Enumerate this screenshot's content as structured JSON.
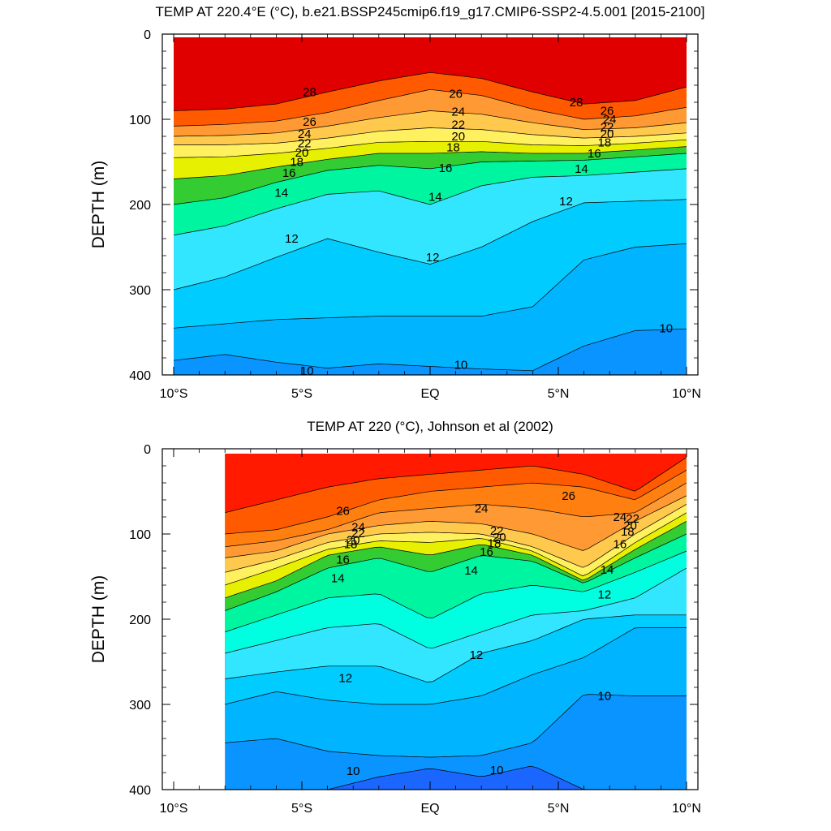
{
  "chart_data": [
    {
      "type": "filled-contour",
      "title": "TEMP AT 220.4°E (°C), b.e21.BSSP245cmip6.f19_g17.CMIP6-SSP2-4.5.001 [2015-2100]",
      "xlabel": "",
      "ylabel": "DEPTH (m)",
      "xlim": [
        -10,
        10
      ],
      "ylim": [
        400,
        0
      ],
      "x_ticks": [
        -10,
        -5,
        0,
        5,
        10
      ],
      "x_tick_labels": [
        "10°S",
        "5°S",
        "EQ",
        "5°N",
        "10°N"
      ],
      "y_ticks": [
        0,
        100,
        200,
        300,
        400
      ],
      "y_tick_labels": [
        "0",
        "100",
        "200",
        "300",
        "400"
      ],
      "contour_interval_C": 1,
      "isotherms": [
        {
          "temp": 28,
          "lat": [
            -10,
            -8,
            -6,
            -4,
            -2,
            0,
            2,
            4,
            6,
            8,
            10
          ],
          "depth": [
            90,
            88,
            82,
            68,
            55,
            45,
            52,
            68,
            82,
            78,
            62
          ]
        },
        {
          "temp": 26,
          "lat": [
            -10,
            -8,
            -6,
            -4,
            -2,
            0,
            2,
            4,
            6,
            8,
            10
          ],
          "depth": [
            108,
            106,
            102,
            92,
            78,
            65,
            72,
            88,
            100,
            96,
            86
          ]
        },
        {
          "temp": 24,
          "lat": [
            -10,
            -8,
            -6,
            -4,
            -2,
            0,
            2,
            4,
            6,
            8,
            10
          ],
          "depth": [
            120,
            119,
            116,
            108,
            98,
            90,
            94,
            104,
            112,
            110,
            104
          ]
        },
        {
          "temp": 22,
          "lat": [
            -10,
            -8,
            -6,
            -4,
            -2,
            0,
            2,
            4,
            6,
            8,
            10
          ],
          "depth": [
            130,
            130,
            128,
            122,
            114,
            110,
            112,
            118,
            122,
            120,
            116
          ]
        },
        {
          "temp": 20,
          "lat": [
            -10,
            -8,
            -6,
            -4,
            -2,
            0,
            2,
            4,
            6,
            8,
            10
          ],
          "depth": [
            145,
            144,
            140,
            134,
            127,
            126,
            126,
            130,
            131,
            128,
            124
          ]
        },
        {
          "temp": 18,
          "lat": [
            -10,
            -8,
            -6,
            -4,
            -2,
            0,
            2,
            4,
            6,
            8,
            10
          ],
          "depth": [
            170,
            166,
            156,
            147,
            140,
            140,
            138,
            140,
            140,
            136,
            132
          ]
        },
        {
          "temp": 16,
          "lat": [
            -10,
            -8,
            -6,
            -4,
            -2,
            0,
            2,
            4,
            6,
            8,
            10
          ],
          "depth": [
            200,
            192,
            174,
            160,
            154,
            158,
            150,
            149,
            148,
            144,
            140
          ]
        },
        {
          "temp": 14,
          "lat": [
            -10,
            -8,
            -6,
            -4,
            -2,
            0,
            2,
            4,
            6,
            8,
            10
          ],
          "depth": [
            236,
            225,
            205,
            188,
            184,
            200,
            178,
            168,
            166,
            162,
            158
          ]
        },
        {
          "temp": 12,
          "lat": [
            -10,
            -8,
            -6,
            -4,
            -2,
            0,
            2,
            4,
            6,
            8,
            10
          ],
          "depth": [
            300,
            285,
            262,
            240,
            256,
            270,
            250,
            220,
            198,
            196,
            194
          ]
        },
        {
          "temp": 11,
          "lat": [
            -10,
            -8,
            -6,
            -4,
            -2,
            0,
            2,
            4,
            6,
            8,
            10
          ],
          "depth": [
            345,
            340,
            335,
            333,
            331,
            331,
            331,
            320,
            265,
            250,
            246
          ]
        },
        {
          "temp": 10,
          "lat": [
            -10,
            -8,
            -6,
            -4,
            -2,
            0,
            2,
            4,
            6,
            8,
            10
          ],
          "depth": [
            383,
            376,
            385,
            392,
            387,
            390,
            393,
            395,
            366,
            348,
            346
          ]
        }
      ],
      "contour_labels": [
        {
          "text": "28",
          "lat": -4.7,
          "depth": 68
        },
        {
          "text": "28",
          "lat": 5.7,
          "depth": 80
        },
        {
          "text": "26",
          "lat": -4.7,
          "depth": 103
        },
        {
          "text": "26",
          "lat": 1.0,
          "depth": 70
        },
        {
          "text": "26",
          "lat": 6.9,
          "depth": 90
        },
        {
          "text": "24",
          "lat": -4.9,
          "depth": 117
        },
        {
          "text": "24",
          "lat": 1.1,
          "depth": 91
        },
        {
          "text": "24",
          "lat": 7.0,
          "depth": 100
        },
        {
          "text": "22",
          "lat": -4.9,
          "depth": 128
        },
        {
          "text": "22",
          "lat": 1.1,
          "depth": 106
        },
        {
          "text": "22",
          "lat": 6.9,
          "depth": 109
        },
        {
          "text": "20",
          "lat": -5.0,
          "depth": 139
        },
        {
          "text": "20",
          "lat": 1.1,
          "depth": 120
        },
        {
          "text": "20",
          "lat": 6.9,
          "depth": 117
        },
        {
          "text": "18",
          "lat": -5.2,
          "depth": 150
        },
        {
          "text": "18",
          "lat": 0.9,
          "depth": 133
        },
        {
          "text": "18",
          "lat": 6.8,
          "depth": 127
        },
        {
          "text": "16",
          "lat": -5.5,
          "depth": 163
        },
        {
          "text": "16",
          "lat": 0.6,
          "depth": 157
        },
        {
          "text": "16",
          "lat": 6.4,
          "depth": 140
        },
        {
          "text": "14",
          "lat": -5.8,
          "depth": 186
        },
        {
          "text": "14",
          "lat": 0.2,
          "depth": 191
        },
        {
          "text": "14",
          "lat": 5.9,
          "depth": 158
        },
        {
          "text": "12",
          "lat": -5.4,
          "depth": 240
        },
        {
          "text": "12",
          "lat": 0.1,
          "depth": 262
        },
        {
          "text": "12",
          "lat": 5.3,
          "depth": 196
        },
        {
          "text": "10",
          "lat": -4.8,
          "depth": 395
        },
        {
          "text": "10",
          "lat": 1.2,
          "depth": 388
        },
        {
          "text": "10",
          "lat": 9.2,
          "depth": 345
        }
      ]
    },
    {
      "type": "filled-contour",
      "title": "TEMP AT 220 (°C), Johnson et al (2002)",
      "xlabel": "",
      "ylabel": "DEPTH (m)",
      "xlim": [
        -10,
        10
      ],
      "ylim": [
        400,
        0
      ],
      "data_lat_range": [
        -8,
        10
      ],
      "x_ticks": [
        -10,
        -5,
        0,
        5,
        10
      ],
      "x_tick_labels": [
        "10°S",
        "5°S",
        "EQ",
        "5°N",
        "10°N"
      ],
      "y_ticks": [
        0,
        100,
        200,
        300,
        400
      ],
      "y_tick_labels": [
        "0",
        "100",
        "200",
        "300",
        "400"
      ],
      "contour_interval_C": 1,
      "isotherms": [
        {
          "temp": 27,
          "lat": [
            -8,
            -6,
            -4,
            -2,
            0,
            2,
            4,
            6,
            8,
            10
          ],
          "depth": [
            75,
            60,
            45,
            35,
            30,
            25,
            20,
            30,
            50,
            10
          ]
        },
        {
          "temp": 26,
          "lat": [
            -8,
            -6,
            -4,
            -2,
            0,
            2,
            4,
            6,
            8,
            10
          ],
          "depth": [
            100,
            95,
            80,
            60,
            50,
            45,
            40,
            45,
            60,
            25
          ]
        },
        {
          "temp": 25,
          "lat": [
            -8,
            -6,
            -4,
            -2,
            0,
            2,
            4,
            6,
            8,
            10
          ],
          "depth": [
            115,
            108,
            95,
            75,
            70,
            65,
            70,
            80,
            75,
            40
          ]
        },
        {
          "temp": 24,
          "lat": [
            -8,
            -6,
            -4,
            -2,
            0,
            2,
            4,
            6,
            8,
            10
          ],
          "depth": [
            128,
            120,
            100,
            90,
            85,
            88,
            100,
            120,
            85,
            55
          ]
        },
        {
          "temp": 22,
          "lat": [
            -8,
            -6,
            -4,
            -2,
            0,
            2,
            4,
            6,
            8,
            10
          ],
          "depth": [
            145,
            130,
            110,
            100,
            98,
            100,
            115,
            140,
            100,
            65
          ]
        },
        {
          "temp": 20,
          "lat": [
            -8,
            -6,
            -4,
            -2,
            0,
            2,
            4,
            6,
            8,
            10
          ],
          "depth": [
            160,
            140,
            118,
            108,
            110,
            105,
            120,
            150,
            110,
            75
          ]
        },
        {
          "temp": 18,
          "lat": [
            -8,
            -6,
            -4,
            -2,
            0,
            2,
            4,
            6,
            8,
            10
          ],
          "depth": [
            175,
            155,
            125,
            115,
            125,
            112,
            125,
            155,
            118,
            85
          ]
        },
        {
          "temp": 16,
          "lat": [
            -8,
            -6,
            -4,
            -2,
            0,
            2,
            4,
            6,
            8,
            10
          ],
          "depth": [
            190,
            168,
            140,
            128,
            145,
            125,
            132,
            158,
            128,
            100
          ]
        },
        {
          "temp": 14,
          "lat": [
            -8,
            -6,
            -4,
            -2,
            0,
            2,
            4,
            6,
            8,
            10
          ],
          "depth": [
            215,
            195,
            175,
            170,
            200,
            170,
            160,
            168,
            145,
            120
          ]
        },
        {
          "temp": 13,
          "lat": [
            -8,
            -6,
            -4,
            -2,
            0,
            2,
            4,
            6,
            8,
            10
          ],
          "depth": [
            240,
            225,
            210,
            205,
            235,
            215,
            195,
            190,
            175,
            140
          ]
        },
        {
          "temp": 12,
          "lat": [
            -8,
            -6,
            -4,
            -2,
            0,
            2,
            4,
            6,
            8,
            10
          ],
          "depth": [
            270,
            262,
            255,
            255,
            275,
            240,
            225,
            200,
            195,
            195
          ]
        },
        {
          "temp": 11,
          "lat": [
            -8,
            -6,
            -4,
            -2,
            0,
            2,
            4,
            6,
            8,
            10
          ],
          "depth": [
            300,
            285,
            295,
            300,
            300,
            290,
            265,
            245,
            210,
            210
          ]
        },
        {
          "temp": 10,
          "lat": [
            -8,
            -6,
            -4,
            -2,
            0,
            2,
            4,
            6,
            8,
            10
          ],
          "depth": [
            345,
            340,
            355,
            360,
            362,
            360,
            345,
            288,
            290,
            290
          ]
        },
        {
          "temp": 9,
          "lat": [
            -8,
            -6,
            -4,
            -2,
            0,
            2,
            4,
            6,
            8,
            10
          ],
          "depth": [
            400,
            400,
            400,
            385,
            375,
            385,
            372,
            400,
            400,
            400
          ]
        }
      ],
      "contour_labels": [
        {
          "text": "26",
          "lat": -3.4,
          "depth": 73
        },
        {
          "text": "26",
          "lat": 5.4,
          "depth": 55
        },
        {
          "text": "24",
          "lat": -2.8,
          "depth": 92
        },
        {
          "text": "24",
          "lat": 2.0,
          "depth": 70
        },
        {
          "text": "24",
          "lat": 7.4,
          "depth": 80
        },
        {
          "text": "22",
          "lat": -2.8,
          "depth": 99
        },
        {
          "text": "22",
          "lat": 2.6,
          "depth": 96
        },
        {
          "text": "22",
          "lat": 7.9,
          "depth": 82
        },
        {
          "text": "20",
          "lat": -3.0,
          "depth": 107
        },
        {
          "text": "20",
          "lat": 2.7,
          "depth": 104
        },
        {
          "text": "20",
          "lat": 7.8,
          "depth": 90
        },
        {
          "text": "18",
          "lat": -3.1,
          "depth": 112
        },
        {
          "text": "18",
          "lat": 2.5,
          "depth": 111
        },
        {
          "text": "18",
          "lat": 7.7,
          "depth": 97
        },
        {
          "text": "16",
          "lat": -3.4,
          "depth": 130
        },
        {
          "text": "16",
          "lat": 2.2,
          "depth": 121
        },
        {
          "text": "16",
          "lat": 7.4,
          "depth": 112
        },
        {
          "text": "14",
          "lat": -3.6,
          "depth": 152
        },
        {
          "text": "14",
          "lat": 1.6,
          "depth": 143
        },
        {
          "text": "14",
          "lat": 6.9,
          "depth": 142
        },
        {
          "text": "12",
          "lat": -3.3,
          "depth": 269
        },
        {
          "text": "12",
          "lat": 1.8,
          "depth": 242
        },
        {
          "text": "12",
          "lat": 6.8,
          "depth": 171
        },
        {
          "text": "10",
          "lat": -3.0,
          "depth": 378
        },
        {
          "text": "10",
          "lat": 2.6,
          "depth": 377
        },
        {
          "text": "10",
          "lat": 6.8,
          "depth": 290
        }
      ]
    }
  ],
  "palette": [
    "#1a66ff",
    "#0a94ff",
    "#00b4ff",
    "#00ccff",
    "#33e6ff",
    "#00ffe0",
    "#00f5a0",
    "#00e05a",
    "#33cc33",
    "#99e600",
    "#e6f000",
    "#ffff33",
    "#fff060",
    "#ffe080",
    "#ffc94d",
    "#ffaa30",
    "#ff9933",
    "#ff8010",
    "#ff5a00",
    "#ff1a00",
    "#e00000"
  ],
  "palette_min_temp": 8,
  "colors": {
    "line": "#000000",
    "background": "#ffffff",
    "missing": "#ffffff"
  }
}
